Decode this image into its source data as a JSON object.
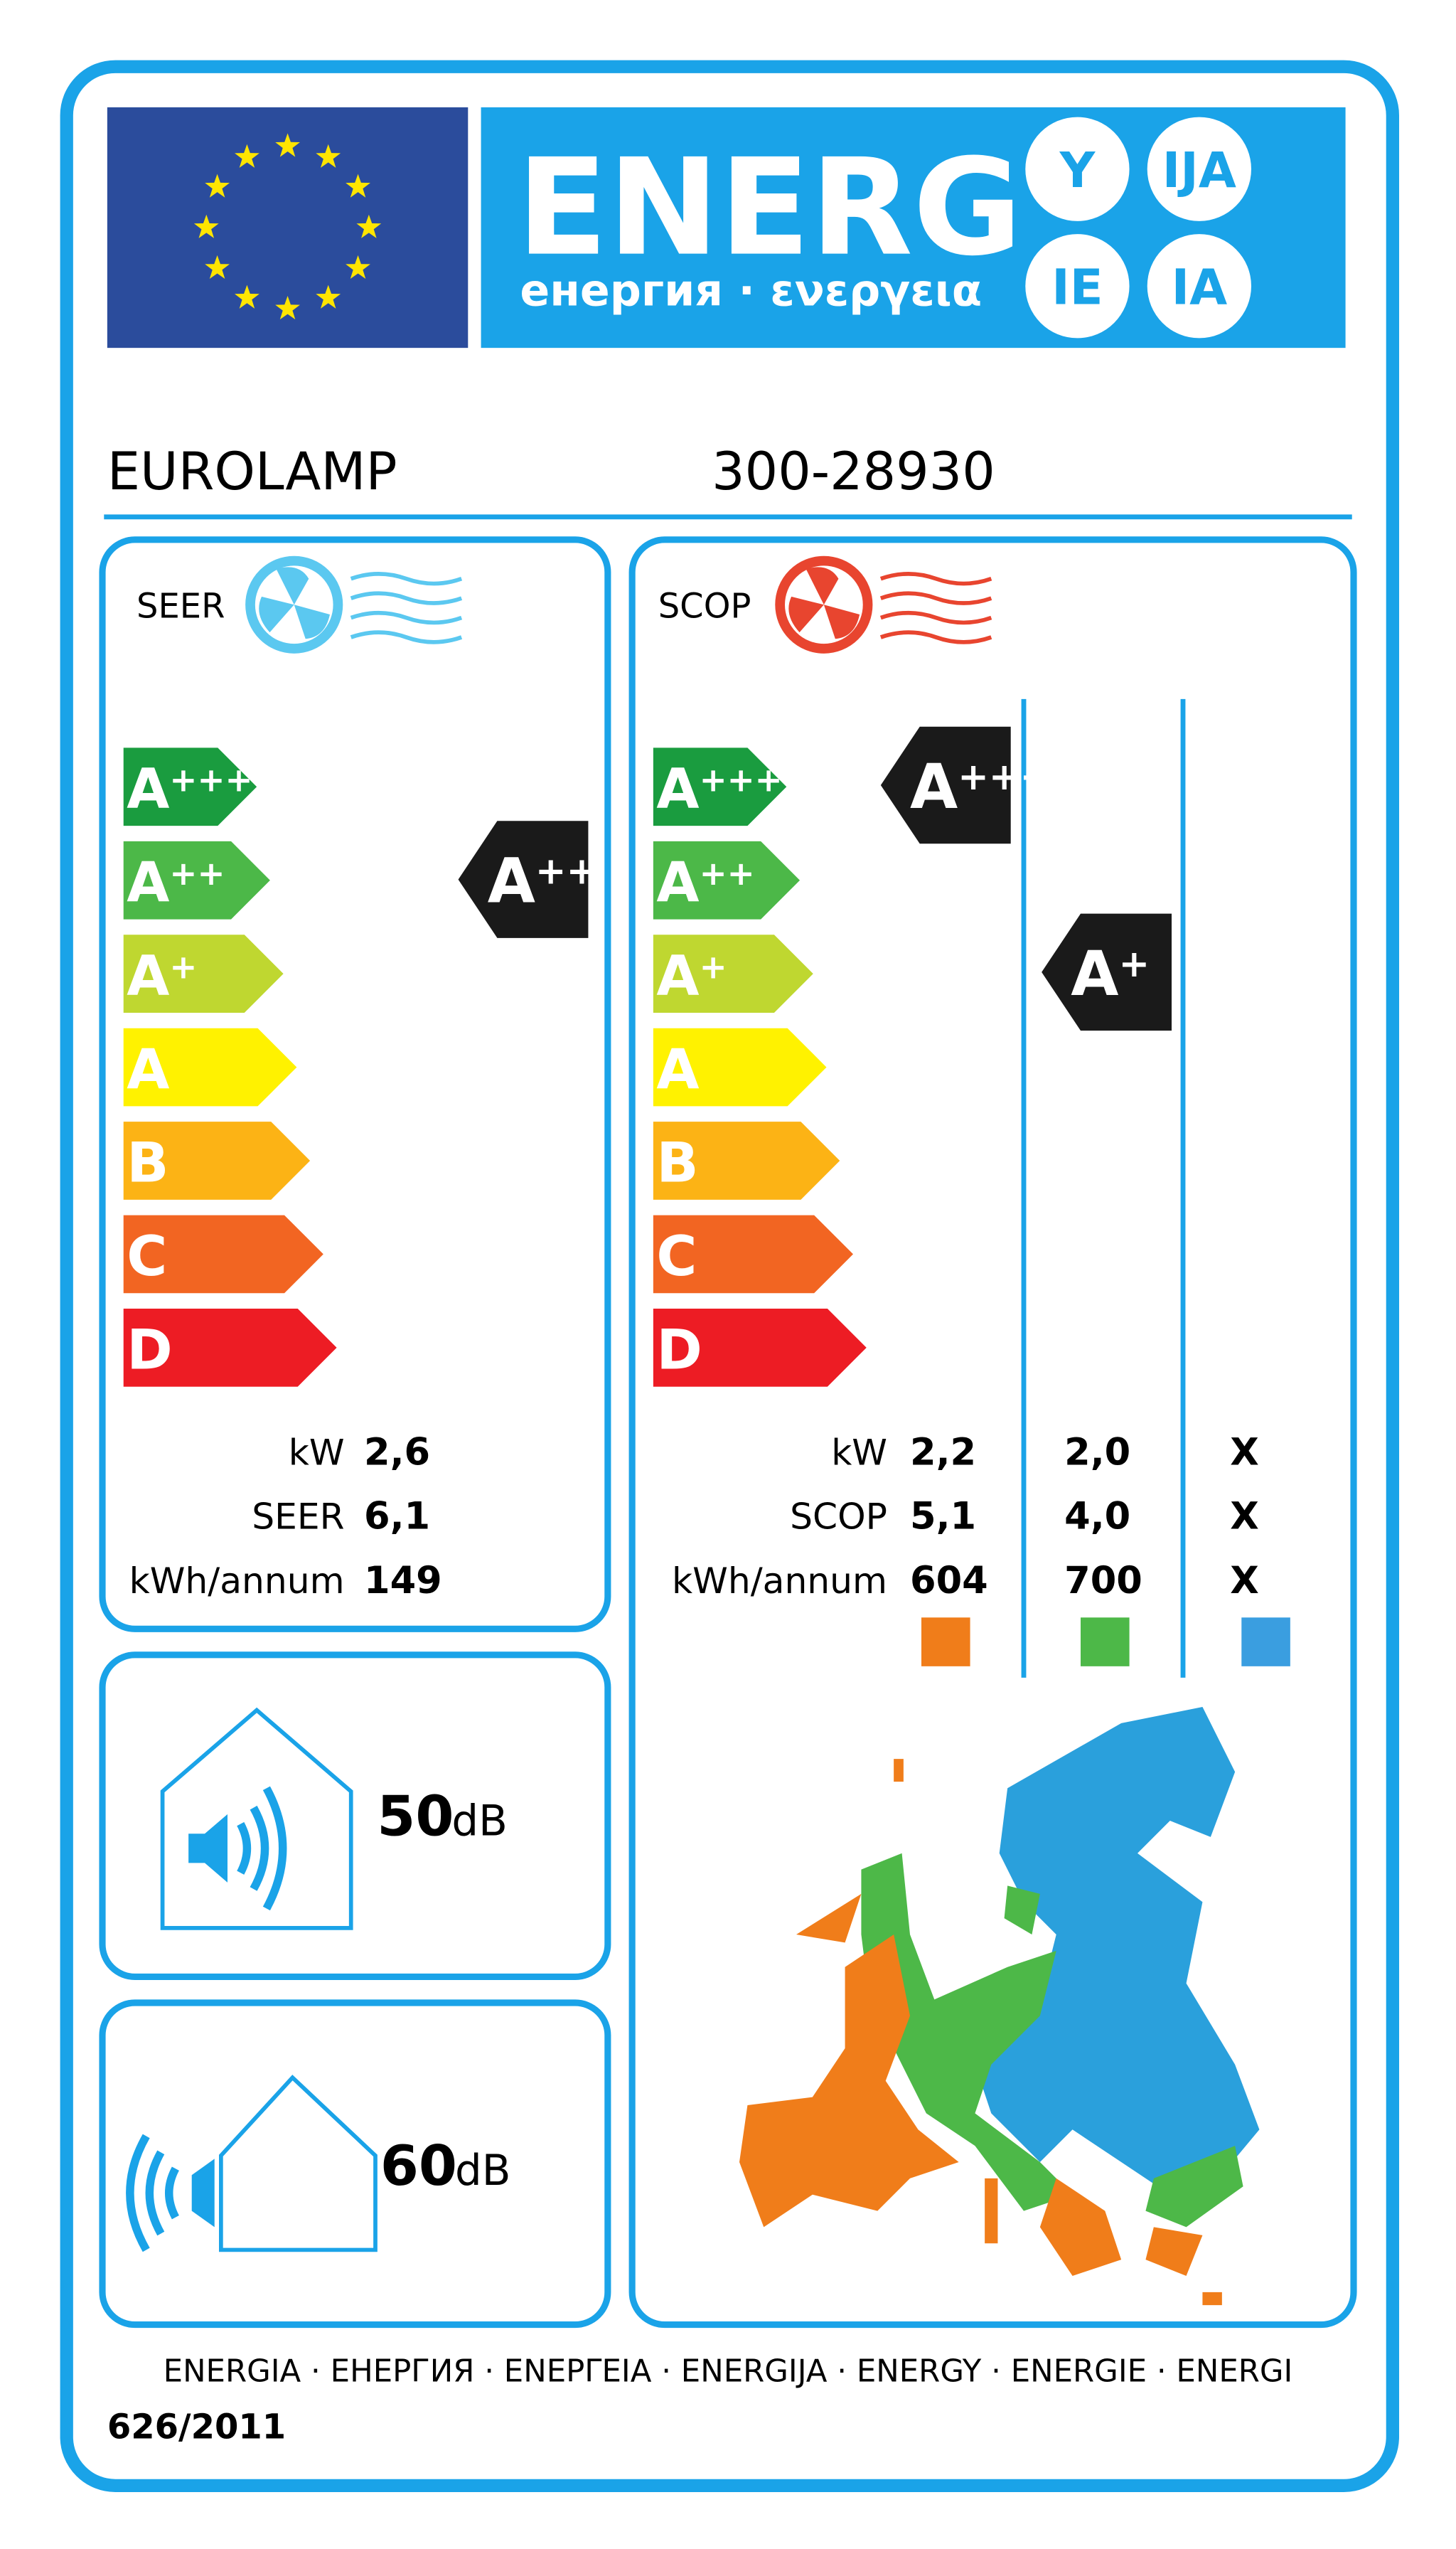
{
  "header": {
    "title": "ENERG",
    "subtitle": "енергия · ενεργεια",
    "suffixes": [
      "Y",
      "IJA",
      "IE",
      "IA"
    ]
  },
  "supplier": "EUROLAMP",
  "model": "300-28930",
  "cooling": {
    "label": "SEER",
    "classes": [
      {
        "letter": "A",
        "sup": "+++"
      },
      {
        "letter": "A",
        "sup": "++"
      },
      {
        "letter": "A",
        "sup": "+"
      },
      {
        "letter": "A"
      },
      {
        "letter": "B"
      },
      {
        "letter": "C"
      },
      {
        "letter": "D"
      }
    ],
    "rating": {
      "letter": "A",
      "sup": "++"
    },
    "rows": [
      {
        "label": "kW",
        "value": "2,6"
      },
      {
        "label": "SEER",
        "value": "6,1"
      },
      {
        "label": "kWh/annum",
        "value": "149"
      }
    ]
  },
  "heating": {
    "label": "SCOP",
    "classes": [
      {
        "letter": "A",
        "sup": "+++"
      },
      {
        "letter": "A",
        "sup": "++"
      },
      {
        "letter": "A",
        "sup": "+"
      },
      {
        "letter": "A"
      },
      {
        "letter": "B"
      },
      {
        "letter": "C"
      },
      {
        "letter": "D"
      }
    ],
    "ratings": [
      {
        "letter": "A",
        "sup": "+++"
      },
      {
        "letter": "A",
        "sup": "+"
      }
    ],
    "row_labels": [
      "kW",
      "SCOP",
      "kWh/annum"
    ],
    "columns": [
      {
        "color": "#f07d1a",
        "values": [
          "2,2",
          "5,1",
          "604"
        ]
      },
      {
        "color": "#4db848",
        "values": [
          "2,0",
          "4,0",
          "700"
        ]
      },
      {
        "color": "#3a9ee0",
        "values": [
          "X",
          "X",
          "X"
        ]
      }
    ]
  },
  "noise_indoor": {
    "value": "50",
    "unit": "dB"
  },
  "noise_outdoor": {
    "value": "60",
    "unit": "dB"
  },
  "footer": {
    "languages": "ENERGIA · ЕНЕРГИЯ · ΕΝΕΡΓΕΙΑ · ENERGIJA · ENERGY · ENERGIE · ENERGI",
    "regulation": "626/2011"
  }
}
